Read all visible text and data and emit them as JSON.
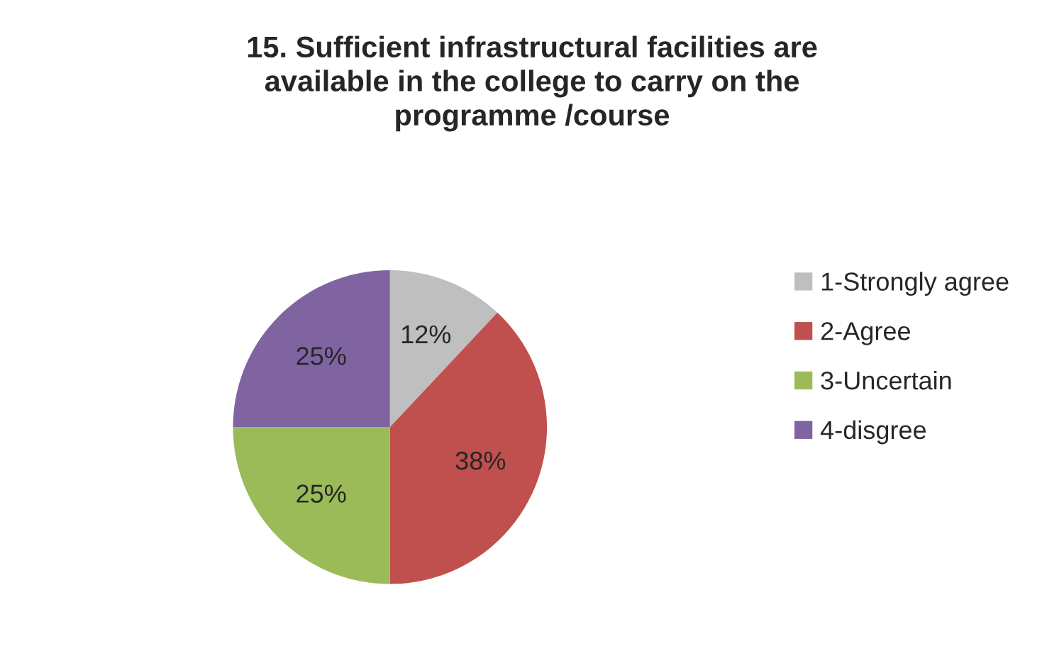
{
  "chart_data": {
    "type": "pie",
    "title": "15. Sufficient infrastructural facilities are\navailable in the college to carry on the\nprogramme /course",
    "categories": [
      "1-Strongly agree",
      "2-Agree",
      "3-Uncertain",
      "4-disgree"
    ],
    "values": [
      12,
      38,
      25,
      25
    ],
    "colors": [
      "#bfbfbf",
      "#c0504d",
      "#9bbb59",
      "#8064a2"
    ],
    "value_labels": [
      "12%",
      "38%",
      "25%",
      "25%"
    ],
    "legend": "right"
  }
}
